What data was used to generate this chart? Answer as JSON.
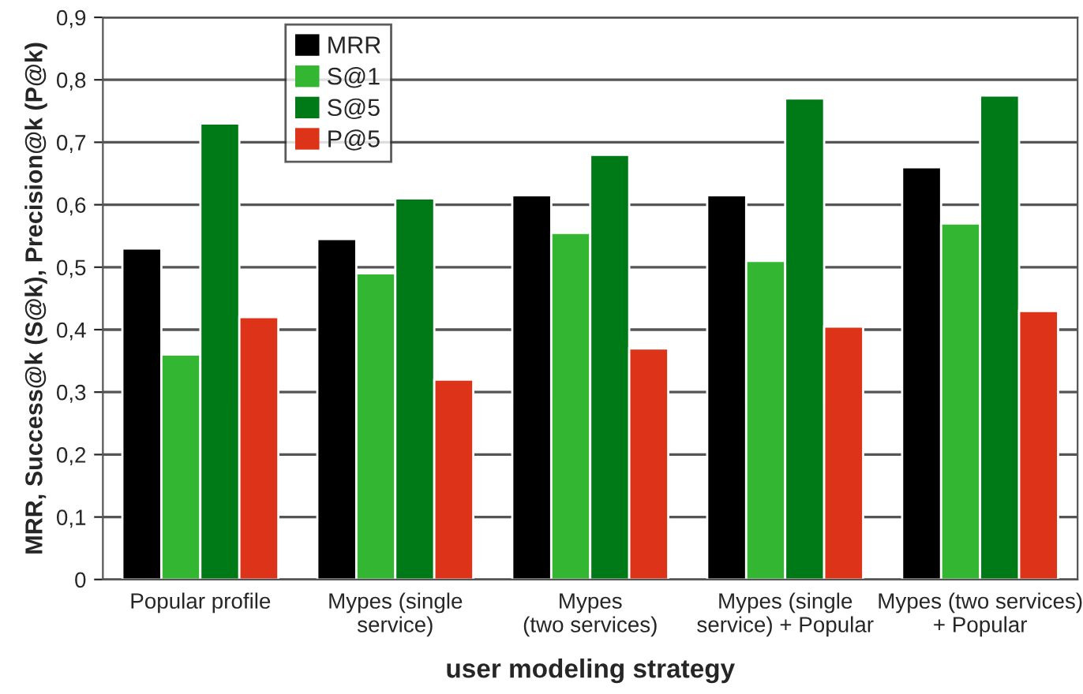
{
  "chart_data": {
    "type": "bar",
    "xlabel": "user modeling strategy",
    "ylabel": "MRR, Success@k (S@k), Precision@k (P@k)",
    "categories": [
      "Popular profile",
      "Mypes (single\nservice)",
      "Mypes\n(two services)",
      "Mypes (single\nservice) + Popular",
      "Mypes (two services)\n+ Popular"
    ],
    "series": [
      {
        "name": "MRR",
        "color": "#000000",
        "values": [
          0.53,
          0.545,
          0.615,
          0.615,
          0.66
        ]
      },
      {
        "name": "S@1",
        "color": "#33b733",
        "values": [
          0.36,
          0.49,
          0.555,
          0.51,
          0.57
        ]
      },
      {
        "name": "S@5",
        "color": "#007a16",
        "values": [
          0.73,
          0.61,
          0.68,
          0.77,
          0.775
        ]
      },
      {
        "name": "P@5",
        "color": "#dd3319",
        "values": [
          0.42,
          0.32,
          0.37,
          0.405,
          0.43
        ]
      }
    ],
    "ylim": [
      0,
      0.9
    ],
    "yticks": [
      {
        "value": 0,
        "label": "0"
      },
      {
        "value": 0.1,
        "label": "0,1"
      },
      {
        "value": 0.2,
        "label": "0,2"
      },
      {
        "value": 0.3,
        "label": "0,3"
      },
      {
        "value": 0.4,
        "label": "0,4"
      },
      {
        "value": 0.5,
        "label": "0,5"
      },
      {
        "value": 0.6,
        "label": "0,6"
      },
      {
        "value": 0.7,
        "label": "0,7"
      },
      {
        "value": 0.8,
        "label": "0,8"
      },
      {
        "value": 0.9,
        "label": "0,9"
      }
    ],
    "grid": "y",
    "legend": "top left"
  }
}
